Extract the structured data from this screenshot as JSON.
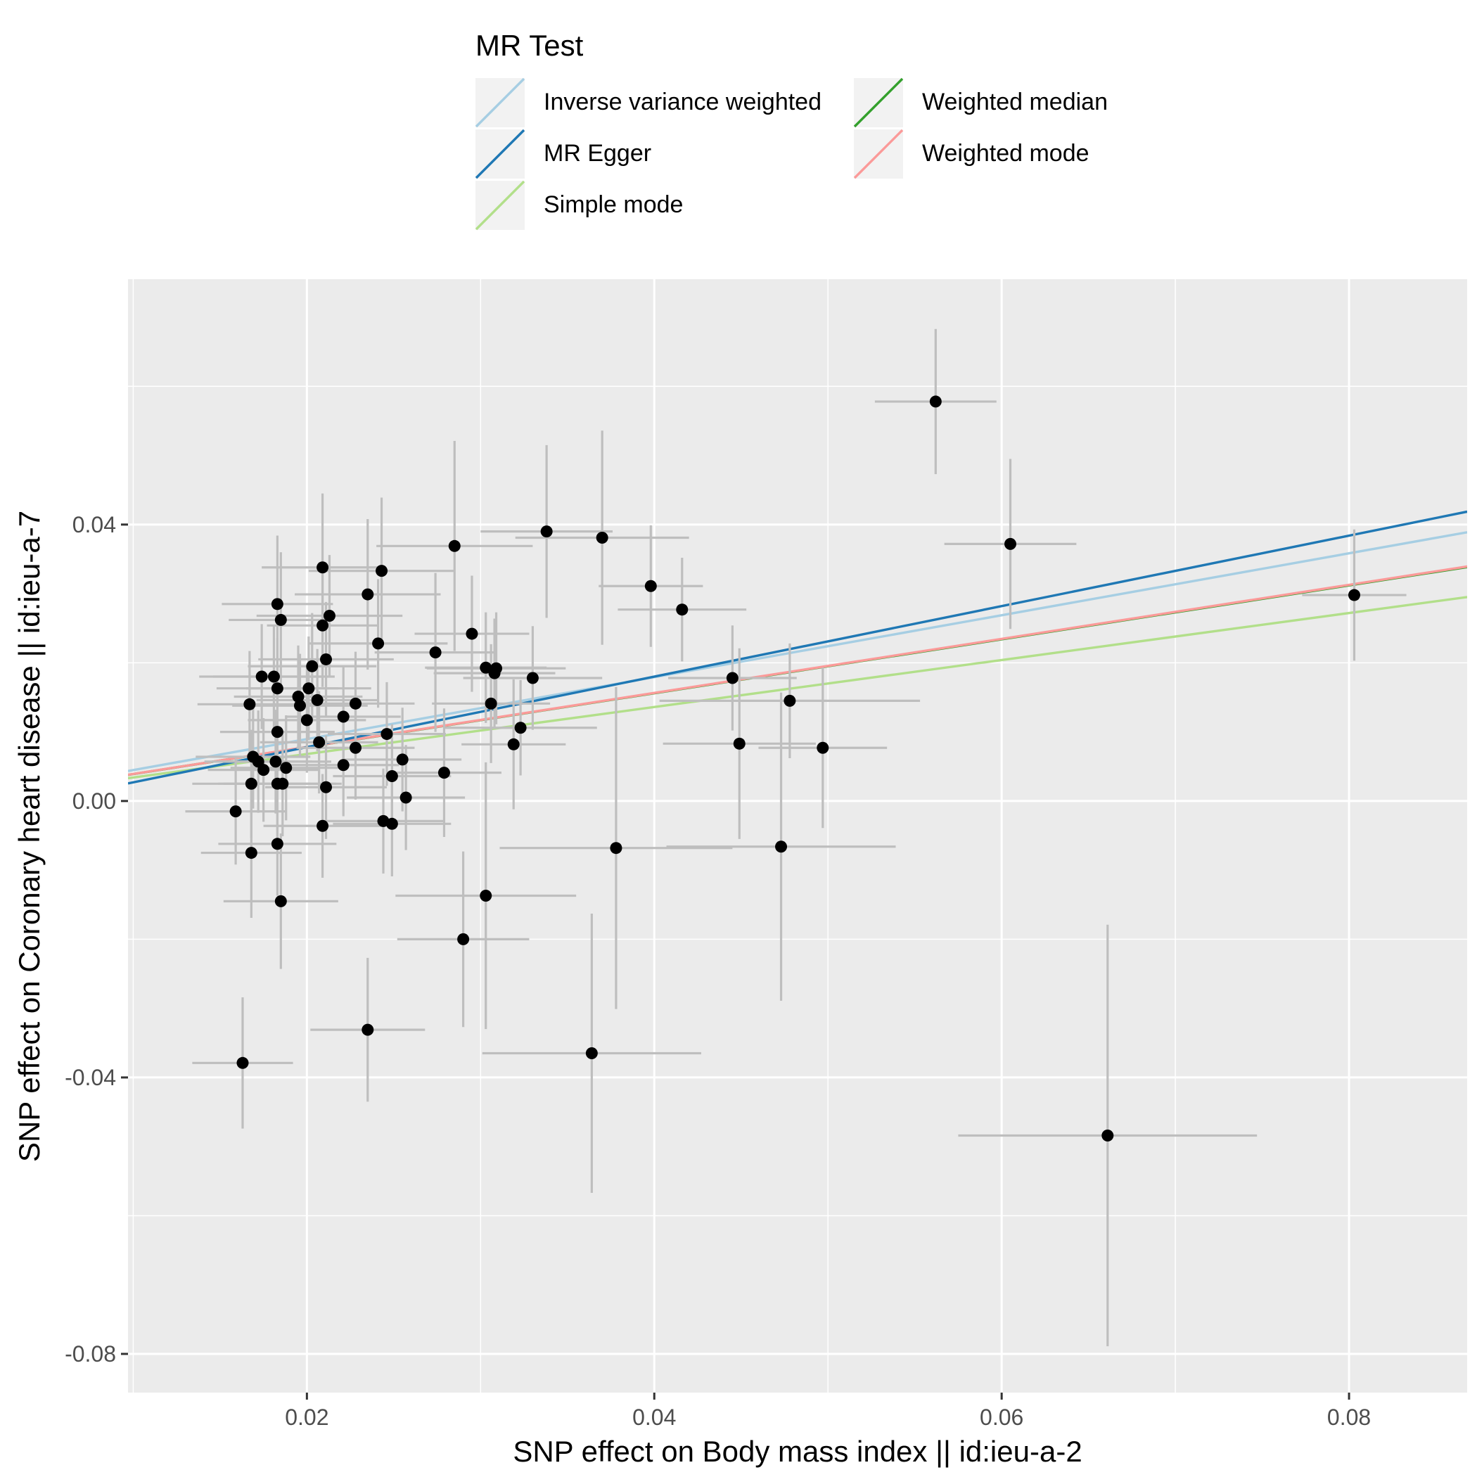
{
  "chart_data": {
    "type": "scatter",
    "title": "",
    "xlabel": "SNP effect on Body mass index || id:ieu-a-2",
    "ylabel": "SNP effect on Coronary heart disease || id:ieu-a-7",
    "xlim": [
      0.0097,
      0.0868
    ],
    "ylim": [
      -0.0856,
      0.0755
    ],
    "x_ticks": [
      0.02,
      0.04,
      0.06,
      0.08
    ],
    "x_tick_labels": [
      "0.02",
      "0.04",
      "0.06",
      "0.08"
    ],
    "y_ticks": [
      -0.08,
      -0.04,
      0.0,
      0.04
    ],
    "y_tick_labels": [
      "-0.08",
      "-0.04",
      "0.00",
      "0.04"
    ],
    "grid": true,
    "legend": {
      "title": "MR Test",
      "position": "top",
      "entries": [
        {
          "label": "Inverse variance weighted",
          "color": "#A6CEE3"
        },
        {
          "label": "MR Egger",
          "color": "#1F78B4"
        },
        {
          "label": "Simple mode",
          "color": "#B2DF8A"
        },
        {
          "label": "Weighted median",
          "color": "#33A02C"
        },
        {
          "label": "Weighted mode",
          "color": "#FB9A99"
        }
      ]
    },
    "lines": [
      {
        "name": "Inverse variance weighted",
        "color": "#A6CEE3",
        "intercept": 0.0,
        "slope": 0.448
      },
      {
        "name": "MR Egger",
        "color": "#1F78B4",
        "intercept": -0.0024,
        "slope": 0.51
      },
      {
        "name": "Simple mode",
        "color": "#B2DF8A",
        "intercept": 0.0,
        "slope": 0.34
      },
      {
        "name": "Weighted median",
        "color": "#33A02C",
        "intercept": 0.0,
        "slope": 0.39
      },
      {
        "name": "Weighted mode",
        "color": "#FB9A99",
        "intercept": 0.0,
        "slope": 0.391
      }
    ],
    "points": [
      {
        "x": 0.0562,
        "y": 0.0578,
        "xse": 0.0035,
        "yse": 0.0105
      },
      {
        "x": 0.0605,
        "y": 0.0372,
        "xse": 0.0038,
        "yse": 0.0123
      },
      {
        "x": 0.0803,
        "y": 0.0298,
        "xse": 0.003,
        "yse": 0.0095
      },
      {
        "x": 0.0661,
        "y": -0.0484,
        "xse": 0.0086,
        "yse": 0.0305
      },
      {
        "x": 0.0338,
        "y": 0.039,
        "xse": 0.0038,
        "yse": 0.0125
      },
      {
        "x": 0.037,
        "y": 0.0381,
        "xse": 0.005,
        "yse": 0.0155
      },
      {
        "x": 0.0285,
        "y": 0.0369,
        "xse": 0.0045,
        "yse": 0.0152
      },
      {
        "x": 0.0398,
        "y": 0.0311,
        "xse": 0.003,
        "yse": 0.0088
      },
      {
        "x": 0.0416,
        "y": 0.0277,
        "xse": 0.0037,
        "yse": 0.0075
      },
      {
        "x": 0.0295,
        "y": 0.0242,
        "xse": 0.0033,
        "yse": 0.0084
      },
      {
        "x": 0.0274,
        "y": 0.0215,
        "xse": 0.0035,
        "yse": 0.0115
      },
      {
        "x": 0.0303,
        "y": 0.0193,
        "xse": 0.0035,
        "yse": 0.008
      },
      {
        "x": 0.0309,
        "y": 0.0192,
        "xse": 0.004,
        "yse": 0.0081
      },
      {
        "x": 0.0308,
        "y": 0.0185,
        "xse": 0.0035,
        "yse": 0.0079
      },
      {
        "x": 0.033,
        "y": 0.0178,
        "xse": 0.004,
        "yse": 0.0075
      },
      {
        "x": 0.0306,
        "y": 0.0141,
        "xse": 0.0034,
        "yse": 0.0086
      },
      {
        "x": 0.0323,
        "y": 0.0106,
        "xse": 0.0044,
        "yse": 0.0069
      },
      {
        "x": 0.0319,
        "y": 0.0082,
        "xse": 0.003,
        "yse": 0.0094
      },
      {
        "x": 0.0279,
        "y": 0.0041,
        "xse": 0.0033,
        "yse": 0.0093
      },
      {
        "x": 0.0445,
        "y": 0.0178,
        "xse": 0.0037,
        "yse": 0.0076
      },
      {
        "x": 0.0478,
        "y": 0.0145,
        "xse": 0.0075,
        "yse": 0.0083
      },
      {
        "x": 0.0449,
        "y": 0.0083,
        "xse": 0.0044,
        "yse": 0.0138
      },
      {
        "x": 0.0497,
        "y": 0.0077,
        "xse": 0.0037,
        "yse": 0.0116
      },
      {
        "x": 0.0378,
        "y": -0.0068,
        "xse": 0.0067,
        "yse": 0.0233
      },
      {
        "x": 0.0473,
        "y": -0.0066,
        "xse": 0.0066,
        "yse": 0.0223
      },
      {
        "x": 0.0303,
        "y": -0.0137,
        "xse": 0.0052,
        "yse": 0.0193
      },
      {
        "x": 0.029,
        "y": -0.02,
        "xse": 0.0038,
        "yse": 0.0127
      },
      {
        "x": 0.0364,
        "y": -0.0365,
        "xse": 0.0063,
        "yse": 0.0202
      },
      {
        "x": 0.0235,
        "y": -0.0331,
        "xse": 0.0033,
        "yse": 0.0104
      },
      {
        "x": 0.0163,
        "y": -0.0379,
        "xse": 0.0029,
        "yse": 0.0095
      },
      {
        "x": 0.0209,
        "y": 0.0338,
        "xse": 0.0035,
        "yse": 0.0107
      },
      {
        "x": 0.0243,
        "y": 0.0333,
        "xse": 0.0042,
        "yse": 0.0106
      },
      {
        "x": 0.0235,
        "y": 0.0299,
        "xse": 0.0042,
        "yse": 0.0109
      },
      {
        "x": 0.0183,
        "y": 0.0285,
        "xse": 0.0032,
        "yse": 0.0099
      },
      {
        "x": 0.0213,
        "y": 0.0268,
        "xse": 0.0042,
        "yse": 0.0088
      },
      {
        "x": 0.0185,
        "y": 0.0262,
        "xse": 0.003,
        "yse": 0.0098
      },
      {
        "x": 0.0209,
        "y": 0.0254,
        "xse": 0.0032,
        "yse": 0.0089
      },
      {
        "x": 0.0241,
        "y": 0.0228,
        "xse": 0.004,
        "yse": 0.0093
      },
      {
        "x": 0.0211,
        "y": 0.0205,
        "xse": 0.0039,
        "yse": 0.0083
      },
      {
        "x": 0.0203,
        "y": 0.0195,
        "xse": 0.0037,
        "yse": 0.0077
      },
      {
        "x": 0.0174,
        "y": 0.018,
        "xse": 0.0036,
        "yse": 0.0076
      },
      {
        "x": 0.0181,
        "y": 0.018,
        "xse": 0.0035,
        "yse": 0.0075
      },
      {
        "x": 0.0183,
        "y": 0.0163,
        "xse": 0.0035,
        "yse": 0.0073
      },
      {
        "x": 0.0195,
        "y": 0.0151,
        "xse": 0.0037,
        "yse": 0.0074
      },
      {
        "x": 0.0206,
        "y": 0.0146,
        "xse": 0.0035,
        "yse": 0.0074
      },
      {
        "x": 0.0196,
        "y": 0.0138,
        "xse": 0.0039,
        "yse": 0.0075
      },
      {
        "x": 0.0201,
        "y": 0.0163,
        "xse": 0.0036,
        "yse": 0.0075
      },
      {
        "x": 0.0167,
        "y": 0.014,
        "xse": 0.003,
        "yse": 0.0077
      },
      {
        "x": 0.0228,
        "y": 0.0141,
        "xse": 0.0034,
        "yse": 0.0075
      },
      {
        "x": 0.0221,
        "y": 0.0122,
        "xse": 0.0033,
        "yse": 0.0074
      },
      {
        "x": 0.02,
        "y": 0.0117,
        "xse": 0.0034,
        "yse": 0.0076
      },
      {
        "x": 0.0183,
        "y": 0.01,
        "xse": 0.0033,
        "yse": 0.0074
      },
      {
        "x": 0.0246,
        "y": 0.0097,
        "xse": 0.0034,
        "yse": 0.0075
      },
      {
        "x": 0.0207,
        "y": 0.0085,
        "xse": 0.0034,
        "yse": 0.0074
      },
      {
        "x": 0.0228,
        "y": 0.0077,
        "xse": 0.0034,
        "yse": 0.0075
      },
      {
        "x": 0.0169,
        "y": 0.0064,
        "xse": 0.0033,
        "yse": 0.0075
      },
      {
        "x": 0.0172,
        "y": 0.0057,
        "xse": 0.0031,
        "yse": 0.0074
      },
      {
        "x": 0.0182,
        "y": 0.0057,
        "xse": 0.0032,
        "yse": 0.0075
      },
      {
        "x": 0.0255,
        "y": 0.006,
        "xse": 0.0034,
        "yse": 0.0075
      },
      {
        "x": 0.0221,
        "y": 0.0052,
        "xse": 0.0032,
        "yse": 0.0074
      },
      {
        "x": 0.0175,
        "y": 0.0045,
        "xse": 0.0032,
        "yse": 0.0075
      },
      {
        "x": 0.0188,
        "y": 0.0048,
        "xse": 0.0032,
        "yse": 0.0076
      },
      {
        "x": 0.0249,
        "y": 0.0036,
        "xse": 0.0034,
        "yse": 0.0075
      },
      {
        "x": 0.0168,
        "y": 0.0025,
        "xse": 0.0034,
        "yse": 0.0078
      },
      {
        "x": 0.0183,
        "y": 0.0025,
        "xse": 0.0034,
        "yse": 0.0076
      },
      {
        "x": 0.0186,
        "y": 0.0025,
        "xse": 0.0034,
        "yse": 0.0076
      },
      {
        "x": 0.0211,
        "y": 0.002,
        "xse": 0.0035,
        "yse": 0.0075
      },
      {
        "x": 0.0257,
        "y": 0.0005,
        "xse": 0.0034,
        "yse": 0.0076
      },
      {
        "x": 0.0159,
        "y": -0.0015,
        "xse": 0.0029,
        "yse": 0.0077
      },
      {
        "x": 0.0244,
        "y": -0.0029,
        "xse": 0.0035,
        "yse": 0.0076
      },
      {
        "x": 0.0249,
        "y": -0.0033,
        "xse": 0.0034,
        "yse": 0.0076
      },
      {
        "x": 0.0209,
        "y": -0.0036,
        "xse": 0.0034,
        "yse": 0.0075
      },
      {
        "x": 0.0183,
        "y": -0.0062,
        "xse": 0.0034,
        "yse": 0.0075
      },
      {
        "x": 0.0168,
        "y": -0.0075,
        "xse": 0.0029,
        "yse": 0.0094
      },
      {
        "x": 0.0185,
        "y": -0.0145,
        "xse": 0.0033,
        "yse": 0.0098
      }
    ]
  }
}
